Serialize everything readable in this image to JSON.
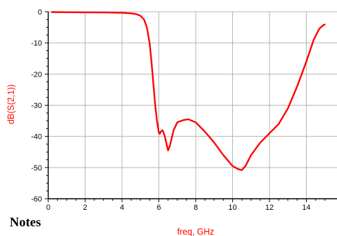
{
  "notes_heading": "Notes",
  "chart_data": {
    "type": "line",
    "xlabel": "freq, GHz",
    "ylabel": "dB(S(2,1))",
    "xlim": [
      0,
      16
    ],
    "ylim": [
      -60,
      0
    ],
    "x_ticks": [
      0,
      2,
      4,
      6,
      8,
      10,
      12,
      14
    ],
    "y_ticks": [
      0,
      -10,
      -20,
      -30,
      -40,
      -50,
      -60
    ],
    "grid": true,
    "line_color": "#ff0000",
    "series": [
      {
        "x": [
          0.2,
          1,
          2,
          3,
          4,
          4.5,
          4.8,
          5.0,
          5.2,
          5.35,
          5.5,
          5.6,
          5.7,
          5.8,
          5.9,
          6.0,
          6.05,
          6.1,
          6.2,
          6.3,
          6.4,
          6.5,
          6.6,
          6.8,
          7.0,
          7.3,
          7.6,
          8.0,
          8.5,
          9.0,
          9.5,
          10.0,
          10.3,
          10.5,
          10.7,
          11.0,
          11.5,
          12.0,
          12.5,
          13.0,
          13.5,
          14.0,
          14.4,
          14.7,
          14.9,
          15.0
        ],
        "y": [
          -0.1,
          -0.15,
          -0.2,
          -0.25,
          -0.35,
          -0.5,
          -0.8,
          -1.3,
          -2.5,
          -5,
          -10,
          -16,
          -23,
          -30,
          -35,
          -38.8,
          -39.2,
          -38.5,
          -38.0,
          -39.5,
          -42,
          -44.5,
          -43,
          -38,
          -35.5,
          -34.8,
          -34.5,
          -35.5,
          -38.5,
          -42,
          -46,
          -49.5,
          -50.5,
          -50.8,
          -49.5,
          -46,
          -42,
          -39,
          -36,
          -31,
          -24,
          -16,
          -9,
          -5.5,
          -4.4,
          -4.1
        ]
      }
    ]
  }
}
